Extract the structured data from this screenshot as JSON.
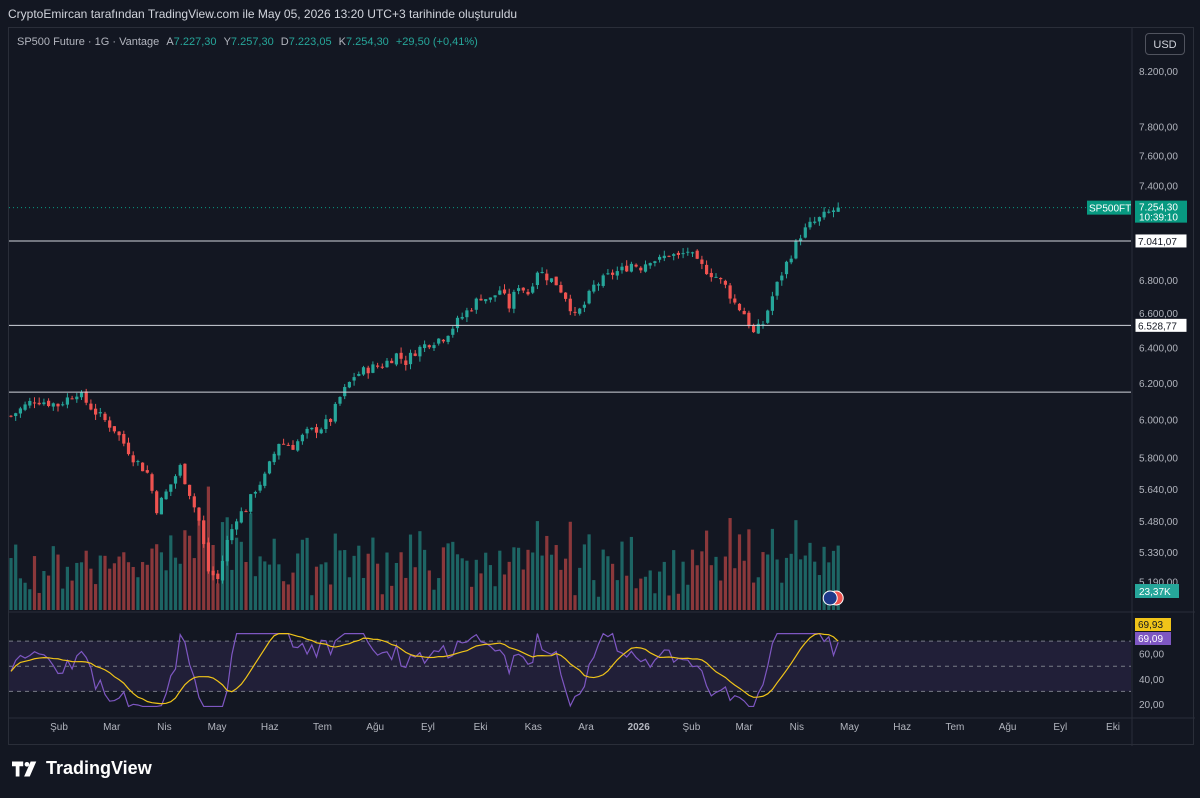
{
  "credit": "CryptoEmircan tarafından TradingView.com ile May 05, 2026 13:20 UTC+3 tarihinde oluşturuldu",
  "legend": {
    "symbol": "SP500 Future · 1G · Vantage",
    "open_label": "A",
    "open": "7.227,30",
    "high_label": "Y",
    "high": "7.257,30",
    "low_label": "D",
    "low": "7.223,05",
    "close_label": "K",
    "close": "7.254,30",
    "change": "+29,50 (+0,41%)"
  },
  "currency_button": "USD",
  "brand": "TradingView",
  "colors": {
    "background": "#131722",
    "up": "#26a69a",
    "down": "#ef5350",
    "rsi_line": "#7e57c2",
    "rsi_ma": "#f0c419",
    "rsi_band": "#2b2548",
    "last_price": "#089981"
  },
  "chart_data": {
    "type": "candlestick",
    "symbol": "SP500 Future",
    "interval": "1G",
    "y_scale": "log",
    "ylim": [
      5060,
      8520
    ],
    "y_ticks": [
      "8.200,00",
      "7.800,00",
      "7.600,00",
      "7.400,00",
      "6.800,00",
      "6.600,00",
      "6.400,00",
      "6.200,00",
      "6.000,00",
      "5.800,00",
      "5.640,00",
      "5.480,00",
      "5.330,00",
      "5.190,00"
    ],
    "x_ticks": [
      "Şub",
      "Mar",
      "Nis",
      "May",
      "Haz",
      "Tem",
      "Ağu",
      "Eyl",
      "Eki",
      "Kas",
      "Ara",
      "2026",
      "Şub",
      "Mar",
      "Nis",
      "May",
      "Haz",
      "Tem",
      "Ağu",
      "Eyl",
      "Eki"
    ],
    "price_path": [
      [
        0,
        6020
      ],
      [
        5,
        6110
      ],
      [
        10,
        6080
      ],
      [
        14,
        6150
      ],
      [
        18,
        6040
      ],
      [
        22,
        5950
      ],
      [
        26,
        5800
      ],
      [
        29,
        5720
      ],
      [
        31,
        5540
      ],
      [
        33,
        5620
      ],
      [
        36,
        5750
      ],
      [
        38,
        5620
      ],
      [
        40,
        5480
      ],
      [
        42,
        5240
      ],
      [
        44,
        5200
      ],
      [
        46,
        5380
      ],
      [
        48,
        5500
      ],
      [
        50,
        5540
      ],
      [
        52,
        5640
      ],
      [
        54,
        5700
      ],
      [
        57,
        5880
      ],
      [
        60,
        5860
      ],
      [
        63,
        5930
      ],
      [
        66,
        5960
      ],
      [
        68,
        6000
      ],
      [
        70,
        6120
      ],
      [
        73,
        6240
      ],
      [
        76,
        6280
      ],
      [
        79,
        6300
      ],
      [
        82,
        6360
      ],
      [
        84,
        6320
      ],
      [
        86,
        6380
      ],
      [
        89,
        6430
      ],
      [
        92,
        6460
      ],
      [
        94,
        6520
      ],
      [
        96,
        6580
      ],
      [
        98,
        6640
      ],
      [
        100,
        6700
      ],
      [
        102,
        6680
      ],
      [
        104,
        6740
      ],
      [
        106,
        6640
      ],
      [
        108,
        6770
      ],
      [
        110,
        6720
      ],
      [
        112,
        6860
      ],
      [
        114,
        6820
      ],
      [
        116,
        6780
      ],
      [
        118,
        6700
      ],
      [
        120,
        6580
      ],
      [
        122,
        6650
      ],
      [
        124,
        6760
      ],
      [
        126,
        6800
      ],
      [
        128,
        6840
      ],
      [
        130,
        6860
      ],
      [
        132,
        6900
      ],
      [
        134,
        6880
      ],
      [
        136,
        6930
      ],
      [
        138,
        6920
      ],
      [
        140,
        6960
      ],
      [
        142,
        6940
      ],
      [
        144,
        6980
      ],
      [
        146,
        6900
      ],
      [
        148,
        6860
      ],
      [
        150,
        6820
      ],
      [
        152,
        6760
      ],
      [
        154,
        6660
      ],
      [
        156,
        6600
      ],
      [
        158,
        6480
      ],
      [
        160,
        6540
      ],
      [
        162,
        6700
      ],
      [
        164,
        6840
      ],
      [
        166,
        6960
      ],
      [
        168,
        7080
      ],
      [
        170,
        7140
      ],
      [
        172,
        7180
      ],
      [
        174,
        7220
      ],
      [
        176,
        7254
      ]
    ],
    "last_price": "7.254,30",
    "countdown": "10:39:10",
    "last_price_label": "SP500FT",
    "horizontal_levels": [
      {
        "value": 7041.07,
        "label": "7.041,07"
      },
      {
        "value": 6528.77,
        "label": "6.528,77"
      },
      {
        "value": 6150
      }
    ],
    "volume": {
      "last": "23,37K"
    },
    "rsi": {
      "ylim": [
        12,
        90
      ],
      "band": [
        30,
        70
      ],
      "y_ticks": [
        "60,00",
        "40,00",
        "20,00"
      ],
      "rsi_value": "69,09",
      "ma_value": "69,93"
    }
  }
}
